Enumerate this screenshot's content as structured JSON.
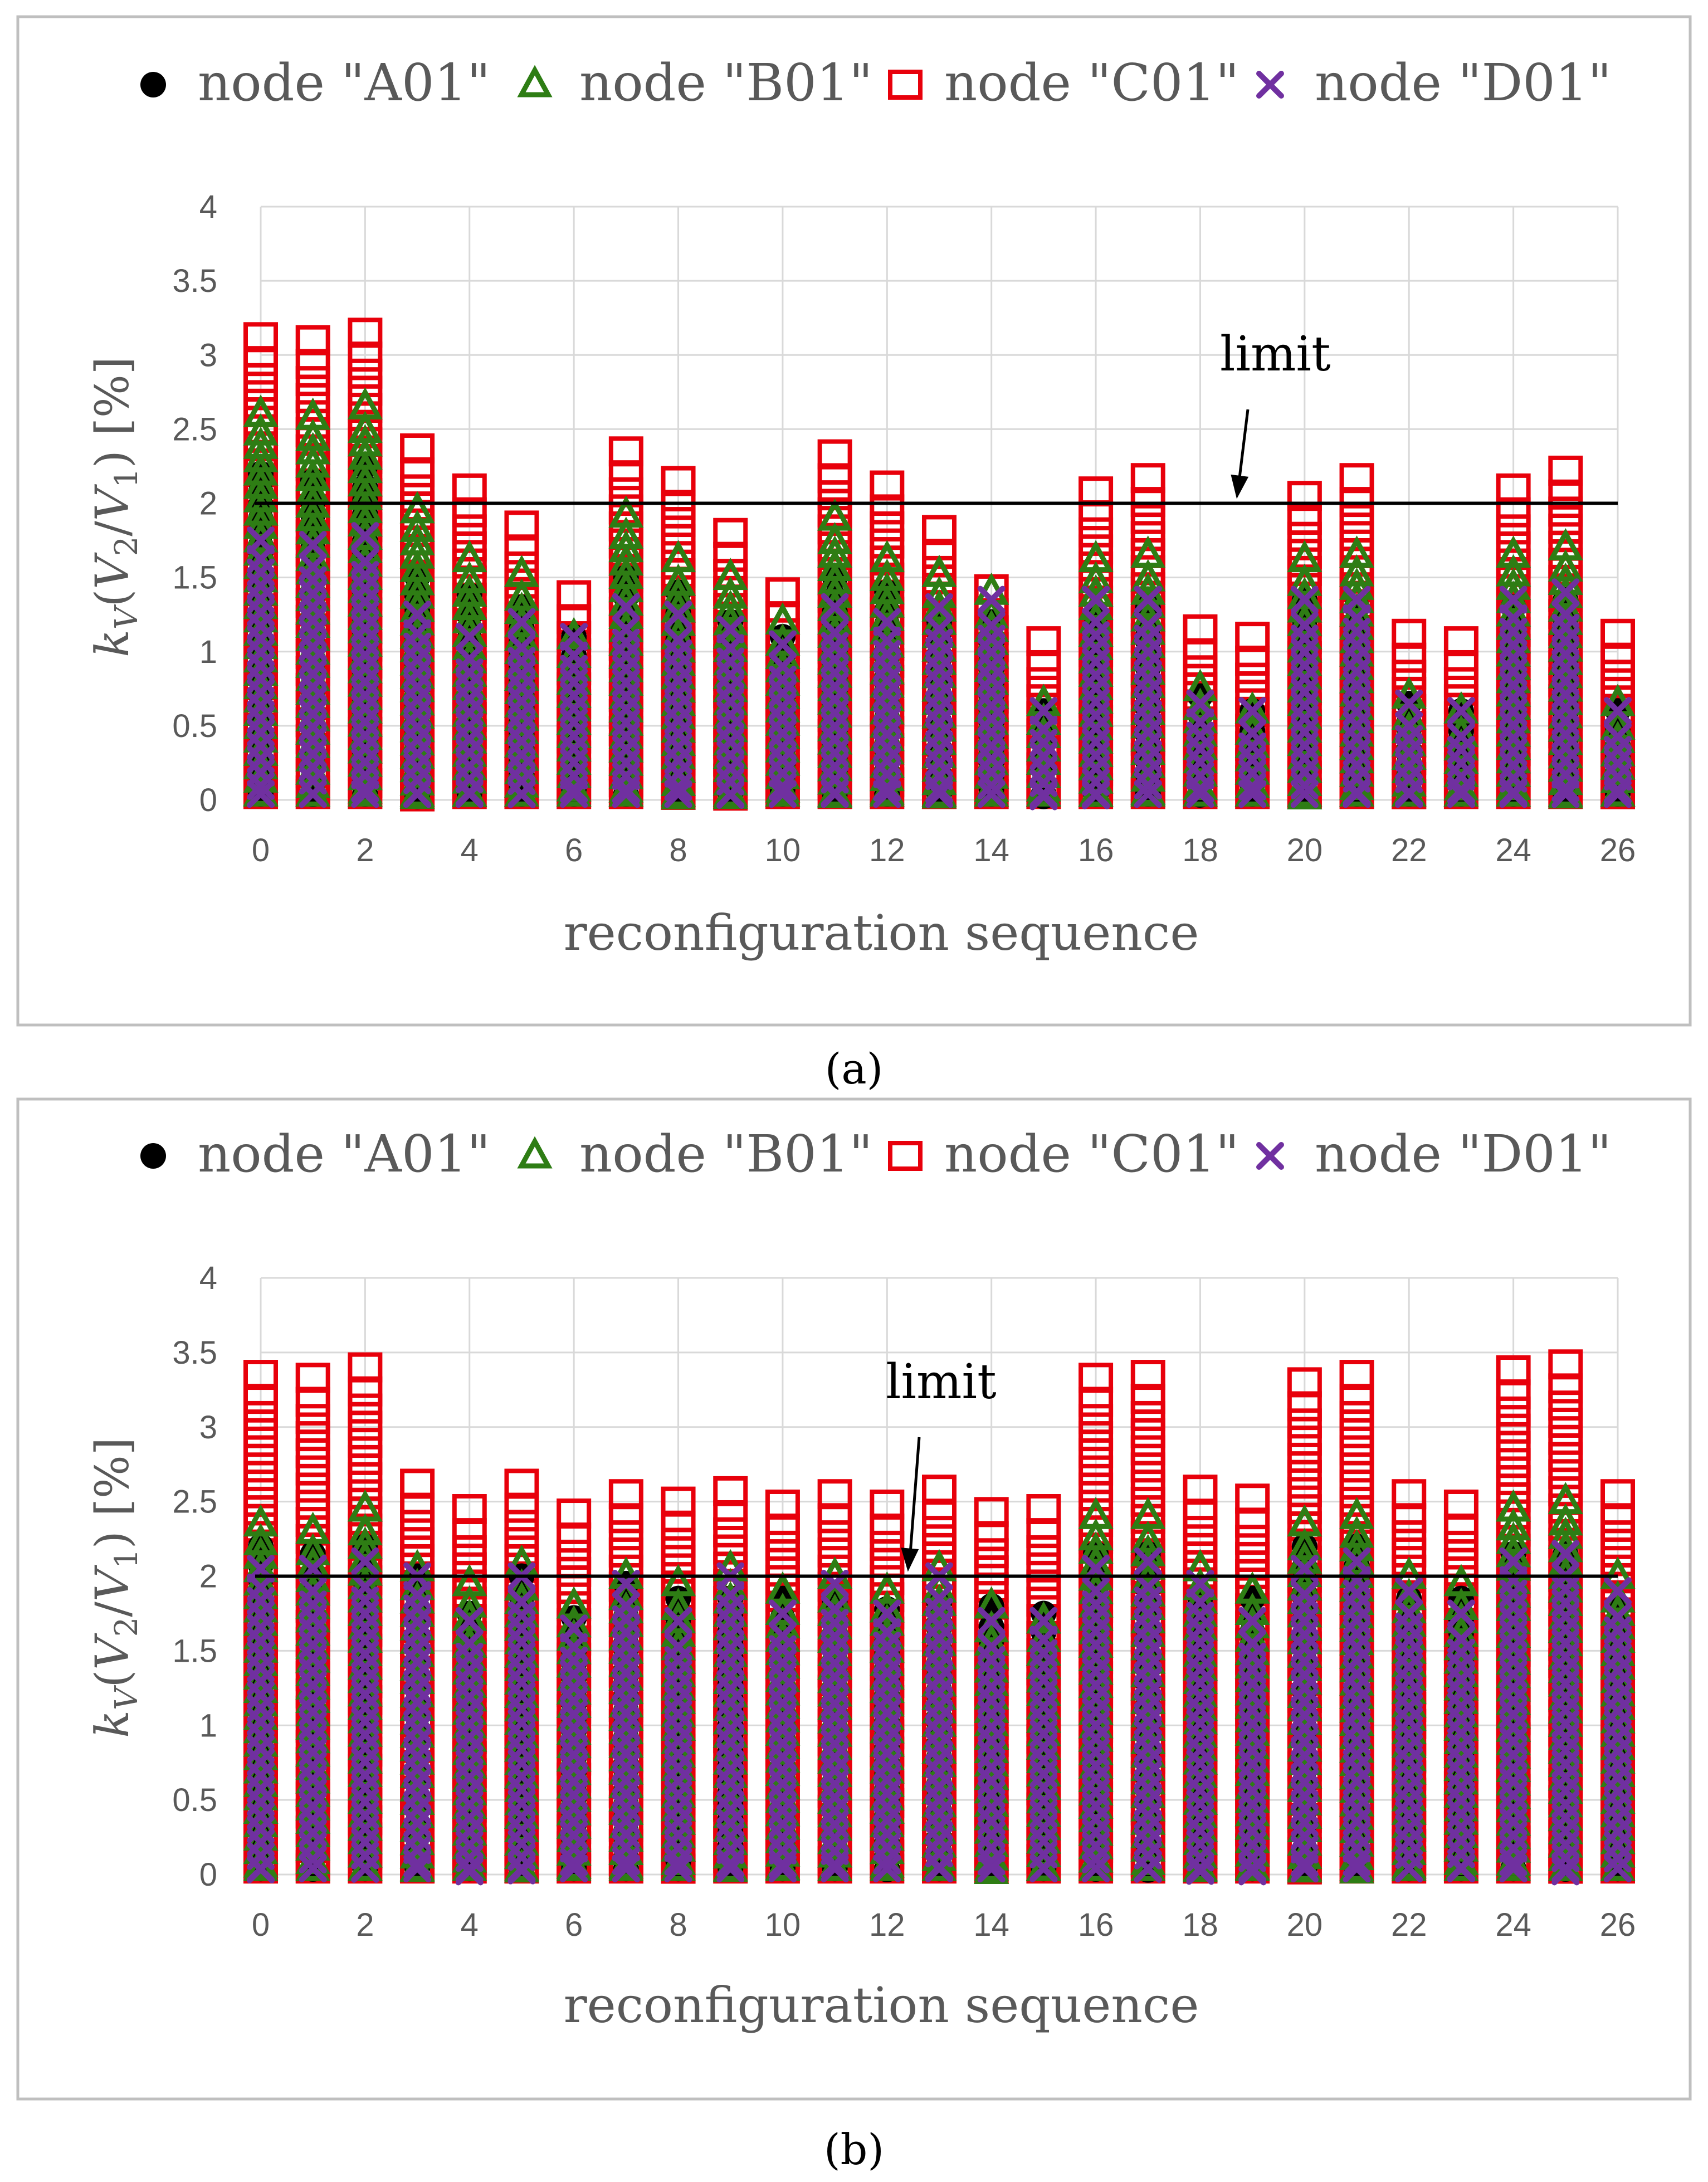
{
  "colors": {
    "A01": "#000000",
    "B01": "#2E7D14",
    "C01": "#E8000B",
    "D01": "#7030A0",
    "grid": "#D9D9D9",
    "text": "#595959",
    "frame": "#BFBFBF",
    "limit": "#000000"
  },
  "chart_data": [
    {
      "panel": "a",
      "caption": "(a)",
      "type": "scatter",
      "title": "",
      "xlabel": "reconfiguration sequence",
      "ylabel": "k_V(V_2/V_1) [%]",
      "ylim": [
        0,
        4
      ],
      "xlim": [
        0,
        26
      ],
      "grid": true,
      "legend_position": "top",
      "x_ticks": [
        0,
        2,
        4,
        6,
        8,
        10,
        12,
        14,
        16,
        18,
        20,
        22,
        24,
        26
      ],
      "y_ticks": [
        0,
        0.5,
        1,
        1.5,
        2,
        2.5,
        3,
        3.5,
        4
      ],
      "limit": {
        "value": 2.0,
        "label": "limit",
        "arrow_x": 18.7
      },
      "series": [
        {
          "name": "node \"A01\"",
          "marker": "circle",
          "color_key": "A01",
          "max": [
            2.2,
            2.15,
            2.25,
            1.5,
            1.38,
            1.3,
            1.1,
            1.5,
            1.4,
            1.2,
            1.1,
            1.5,
            1.4,
            1.2,
            1.2,
            0.6,
            1.25,
            1.3,
            0.7,
            0.6,
            1.35,
            1.3,
            0.65,
            0.6,
            1.3,
            1.35,
            0.6
          ]
        },
        {
          "name": "node \"B01\"",
          "marker": "triangle",
          "color_key": "B01",
          "max": [
            2.6,
            2.58,
            2.65,
            1.95,
            1.62,
            1.52,
            1.1,
            1.92,
            1.62,
            1.5,
            1.2,
            1.9,
            1.62,
            1.52,
            1.4,
            0.65,
            1.62,
            1.65,
            0.75,
            0.6,
            1.62,
            1.65,
            0.7,
            0.6,
            1.65,
            1.7,
            0.65
          ]
        },
        {
          "name": "node \"C01\"",
          "marker": "square",
          "color_key": "C01",
          "max": [
            3.12,
            3.1,
            3.15,
            2.37,
            2.1,
            1.85,
            1.38,
            2.35,
            2.15,
            1.8,
            1.4,
            2.33,
            2.12,
            1.82,
            1.42,
            1.07,
            2.08,
            2.17,
            1.15,
            1.1,
            2.05,
            2.17,
            1.12,
            1.07,
            2.1,
            2.22,
            1.12
          ]
        },
        {
          "name": "node \"D01\"",
          "marker": "x",
          "color_key": "D01",
          "max": [
            1.75,
            1.72,
            1.78,
            1.25,
            1.1,
            1.2,
            1.1,
            1.3,
            1.25,
            1.15,
            1.05,
            1.3,
            1.2,
            1.3,
            1.35,
            0.6,
            1.35,
            1.35,
            0.65,
            0.6,
            1.35,
            1.35,
            0.65,
            0.6,
            1.35,
            1.4,
            0.6
          ]
        }
      ]
    },
    {
      "panel": "b",
      "caption": "(b)",
      "type": "scatter",
      "title": "",
      "xlabel": "reconfiguration sequence",
      "ylabel": "k_V(V_2/V_1) [%]",
      "ylim": [
        0,
        4
      ],
      "xlim": [
        0,
        26
      ],
      "grid": true,
      "legend_position": "top",
      "x_ticks": [
        0,
        2,
        4,
        6,
        8,
        10,
        12,
        14,
        16,
        18,
        20,
        22,
        24,
        26
      ],
      "y_ticks": [
        0,
        0.5,
        1,
        1.5,
        2,
        2.5,
        3,
        3.5,
        4
      ],
      "limit": {
        "value": 2.0,
        "label": "limit",
        "arrow_x": 12.4
      },
      "series": [
        {
          "name": "node \"A01\"",
          "marker": "circle",
          "color_key": "A01",
          "max": [
            2.2,
            2.15,
            2.2,
            2.0,
            1.75,
            2.0,
            1.72,
            1.95,
            1.85,
            1.85,
            1.85,
            1.82,
            1.78,
            1.82,
            1.8,
            1.75,
            2.15,
            2.15,
            1.85,
            1.85,
            2.2,
            2.2,
            1.85,
            1.85,
            2.15,
            2.15,
            1.8
          ]
        },
        {
          "name": "node \"B01\"",
          "marker": "triangle",
          "color_key": "B01",
          "max": [
            2.35,
            2.3,
            2.45,
            2.05,
            1.95,
            2.08,
            1.8,
            2.0,
            1.95,
            2.05,
            1.9,
            2.0,
            1.9,
            2.05,
            1.8,
            1.7,
            2.4,
            2.4,
            2.05,
            1.9,
            2.35,
            2.4,
            2.0,
            1.95,
            2.45,
            2.5,
            2.0
          ]
        },
        {
          "name": "node \"C01\"",
          "marker": "square",
          "color_key": "C01",
          "max": [
            3.35,
            3.33,
            3.4,
            2.62,
            2.45,
            2.62,
            2.42,
            2.55,
            2.5,
            2.57,
            2.48,
            2.55,
            2.48,
            2.58,
            2.43,
            2.45,
            3.33,
            3.35,
            2.58,
            2.52,
            3.3,
            3.35,
            2.55,
            2.48,
            3.38,
            3.42,
            2.55
          ]
        },
        {
          "name": "node \"D01\"",
          "marker": "x",
          "color_key": "D01",
          "max": [
            2.05,
            2.05,
            2.1,
            2.0,
            1.7,
            2.0,
            1.65,
            1.95,
            1.7,
            2.0,
            1.75,
            1.95,
            1.75,
            2.0,
            1.7,
            1.7,
            2.05,
            2.1,
            1.95,
            1.7,
            2.05,
            2.1,
            1.9,
            1.75,
            2.1,
            2.15,
            1.9
          ]
        }
      ]
    }
  ]
}
